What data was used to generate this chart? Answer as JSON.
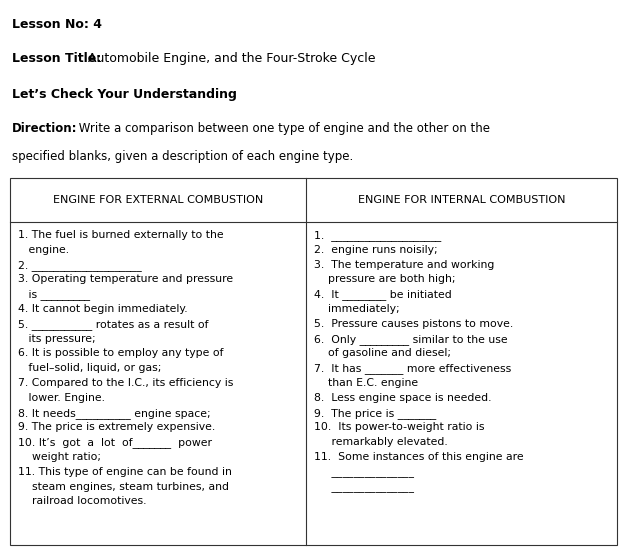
{
  "lesson_no": "Lesson No: 4",
  "lesson_title_bold": "Lesson Title:",
  "lesson_title_rest": " Automobile Engine, and the Four-Stroke Cycle",
  "section_title": "Let’s Check Your Understanding",
  "direction_label": "Direction:",
  "direction_line1": " Write a comparison between one type of engine and the other on the",
  "direction_line2": "specified blanks, given a description of each engine type.",
  "col1_header": "ENGINE FOR EXTERNAL COMBUSTION",
  "col2_header": "ENGINE FOR INTERNAL COMBUSTION",
  "col1_lines": [
    "1. The fuel is burned externally to the",
    "   engine.",
    "2. ____________________",
    "3. Operating temperature and pressure",
    "   is _________",
    "4. It cannot begin immediately.",
    "5. ___________ rotates as a result of",
    "   its pressure;",
    "6. It is possible to employ any type of",
    "   fuel–solid, liquid, or gas;",
    "7. Compared to the I.C., its efficiency is",
    "   lower. Engine.",
    "8. It needs__________ engine space;",
    "9. The price is extremely expensive.",
    "10. It’s  got  a  lot  of_______  power",
    "    weight ratio;",
    "11. This type of engine can be found in",
    "    steam engines, steam turbines, and",
    "    railroad locomotives."
  ],
  "col2_lines": [
    "1.  ____________________",
    "2.  engine runs noisily;",
    "3.  The temperature and working",
    "    pressure are both high;",
    "4.  It ________ be initiated",
    "    immediately;",
    "5.  Pressure causes pistons to move.",
    "6.  Only _________ similar to the use",
    "    of gasoline and diesel;",
    "7.  It has _______ more effectiveness",
    "    than E.C. engine",
    "8.  Less engine space is needed.",
    "9.  The price is _______",
    "10.  Its power-to-weight ratio is",
    "     remarkably elevated.",
    "11.  Some instances of this engine are",
    "     _______________",
    "     _______________"
  ],
  "bg_color": "#ffffff",
  "text_color": "#000000",
  "border_color": "#333333",
  "header_fontsize": 8.0,
  "body_fontsize": 7.8,
  "title_fontsize": 9.0,
  "direction_fontsize": 8.5,
  "fig_width": 6.27,
  "fig_height": 5.5,
  "dpi": 100
}
